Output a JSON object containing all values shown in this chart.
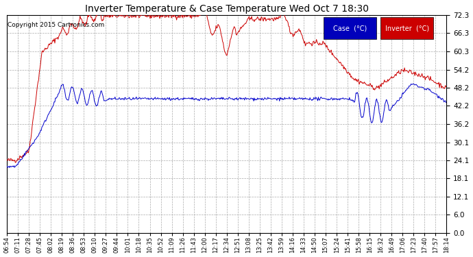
{
  "title": "Inverter Temperature & Case Temperature Wed Oct 7 18:30",
  "copyright": "Copyright 2015 Cartronics.com",
  "legend_case_label": "Case  (°C)",
  "legend_inv_label": "Inverter  (°C)",
  "case_color": "#0000cc",
  "inverter_color": "#cc0000",
  "legend_case_bg": "#0000bb",
  "legend_inv_bg": "#cc0000",
  "background_color": "#ffffff",
  "plot_bg_color": "#ffffff",
  "grid_color": "#aaaaaa",
  "ylim": [
    0.0,
    72.3
  ],
  "yticks": [
    0.0,
    6.0,
    12.1,
    18.1,
    24.1,
    30.1,
    36.2,
    42.2,
    48.2,
    54.2,
    60.3,
    66.3,
    72.3
  ],
  "xtick_labels": [
    "06:54",
    "07:11",
    "07:28",
    "07:45",
    "08:02",
    "08:19",
    "08:36",
    "08:53",
    "09:10",
    "09:27",
    "09:44",
    "10:01",
    "10:18",
    "10:35",
    "10:52",
    "11:09",
    "11:26",
    "11:43",
    "12:00",
    "12:17",
    "12:34",
    "12:51",
    "13:08",
    "13:25",
    "13:42",
    "13:59",
    "14:16",
    "14:33",
    "14:50",
    "15:07",
    "15:24",
    "15:41",
    "15:58",
    "16:15",
    "16:32",
    "16:49",
    "17:06",
    "17:23",
    "17:40",
    "17:57",
    "18:14"
  ]
}
